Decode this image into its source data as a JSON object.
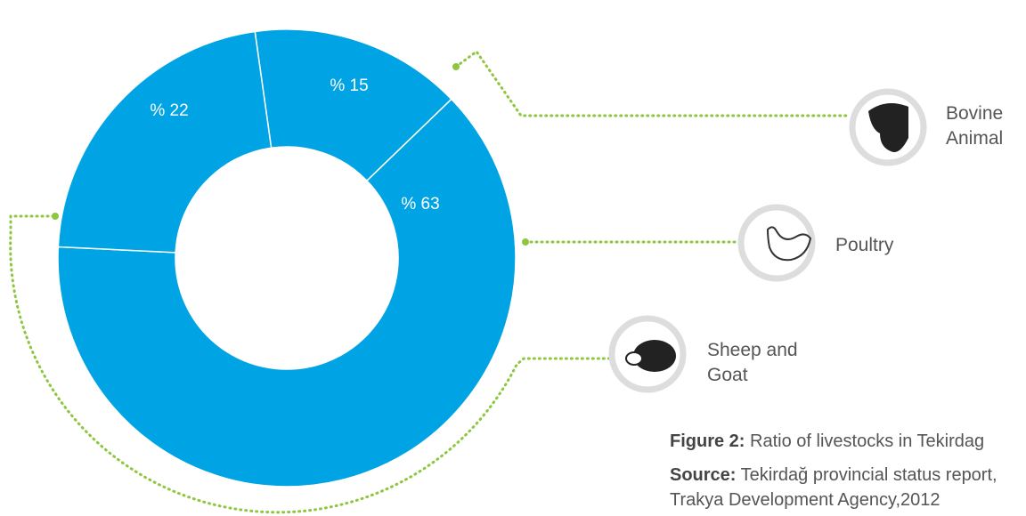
{
  "chart_data": {
    "type": "donut",
    "categories": [
      "Bovine Animal",
      "Poultry",
      "Sheep and Goat"
    ],
    "values": [
      15,
      63,
      22
    ],
    "value_labels": [
      "% 15",
      "% 63",
      "% 22"
    ],
    "color": "#00a4e4",
    "caption": {
      "figure_label": "Figure 2:",
      "figure_text": "Ratio of livestocks in Tekirdag",
      "source_label": "Source:",
      "source_text": "Tekirdağ provincial status report, Trakya Development Agency,2012"
    }
  }
}
